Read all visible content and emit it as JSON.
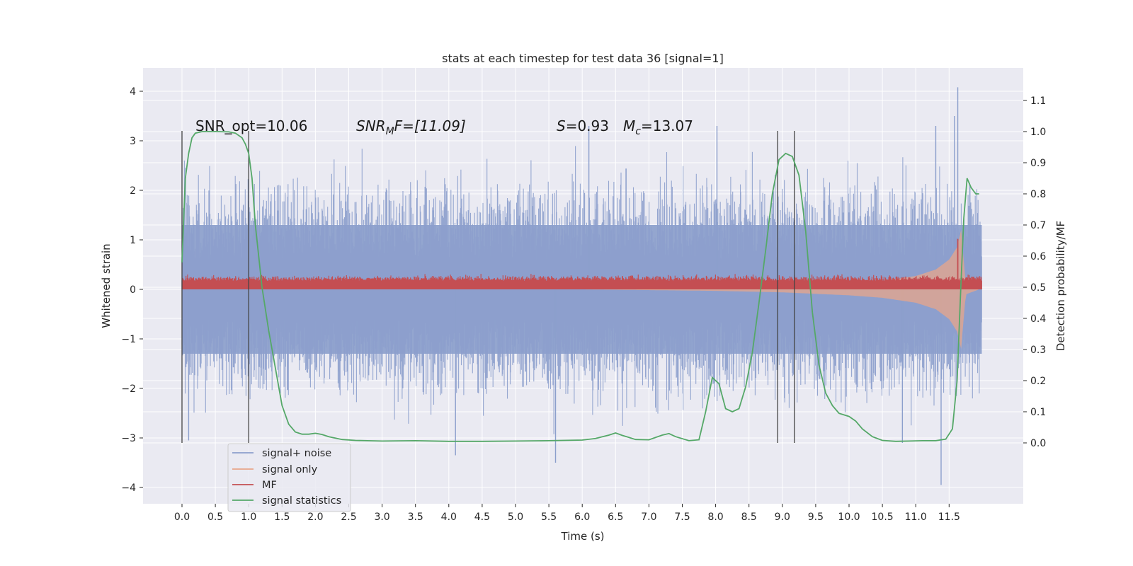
{
  "chart_data": {
    "type": "line",
    "title": "stats at each timestep for test data 36 [signal=1]",
    "xlabel": "Time (s)",
    "ylabel": "Whitened strain",
    "ylabel_right": "Detection probability/MF",
    "xlim": [
      -0.58,
      12.58
    ],
    "ylim": [
      -4.4,
      4.45
    ],
    "ylim_right": [
      -0.2,
      1.19
    ],
    "x_ticks": [
      0.0,
      0.5,
      1.0,
      1.5,
      2.0,
      2.5,
      3.0,
      3.5,
      4.0,
      4.5,
      5.0,
      5.5,
      6.0,
      6.5,
      7.0,
      7.5,
      8.0,
      8.5,
      9.0,
      9.5,
      10.0,
      10.5,
      11.0,
      11.5
    ],
    "x_tick_labels": [
      "0.0",
      "0.5",
      "1.0",
      "1.5",
      "2.0",
      "2.5",
      "3.0",
      "3.5",
      "4.0",
      "4.5",
      "5.0",
      "5.5",
      "6.0",
      "6.5",
      "7.0",
      "7.5",
      "8.0",
      "8.5",
      "9.0",
      "9.5",
      "10.0",
      "10.5",
      "11.0",
      "11.5"
    ],
    "y_ticks": [
      4,
      3,
      2,
      1,
      0,
      -1,
      -2,
      -3,
      -4
    ],
    "y_tick_labels": [
      "4",
      "3",
      "2",
      "1",
      "0",
      "−1",
      "−2",
      "−3",
      "−4"
    ],
    "y2_ticks": [
      1.1,
      1.0,
      0.9,
      0.8,
      0.7,
      0.6,
      0.5,
      0.4,
      0.3,
      0.2,
      0.1,
      0.0
    ],
    "y2_tick_labels": [
      "1.1",
      "1.0",
      "0.9",
      "0.8",
      "0.7",
      "0.6",
      "0.5",
      "0.4",
      "0.3",
      "0.2",
      "0.1",
      "0.0"
    ],
    "grid": true,
    "legend_position": "lower-left",
    "annotations": {
      "snr_opt": "SNR_opt=10.06",
      "snr_mf_sym": "SNR",
      "snr_mf_sub": "M",
      "snr_mf_rest": "F=[11.09]",
      "s_sym": "S",
      "s_rest": "=0.93",
      "mc_sym": "M",
      "mc_sub": "c",
      "mc_rest": "=13.07"
    },
    "vertical_markers": [
      {
        "x": 0.0,
        "y_range": [
          -3.1,
          3.2
        ]
      },
      {
        "x": 1.0,
        "y_range": [
          -3.1,
          3.2
        ]
      },
      {
        "x": 8.93,
        "y_range": [
          -3.1,
          3.2
        ]
      },
      {
        "x": 9.18,
        "y_range": [
          -3.1,
          3.2
        ]
      }
    ],
    "series": [
      {
        "name": "signal+ noise",
        "color": "#8c9fcc",
        "description_values": {
          "x_range": [
            0.0,
            11.99
          ],
          "core_band": [
            -1.3,
            1.3
          ],
          "spike_max": 4.08,
          "spike_min": -3.95
        }
      },
      {
        "name": "signal only",
        "color": "#e8a58a",
        "envelope": {
          "x": [
            0.0,
            6.0,
            8.0,
            9.0,
            10.0,
            10.5,
            11.0,
            11.3,
            11.5,
            11.62,
            11.68,
            11.75,
            11.95
          ],
          "amplitude": [
            0.0,
            0.0,
            0.03,
            0.06,
            0.12,
            0.17,
            0.27,
            0.4,
            0.6,
            0.85,
            1.2,
            0.1,
            0.0
          ]
        }
      },
      {
        "name": "MF",
        "color": "#c44e52",
        "base_level": 0.15,
        "peak": {
          "x": 11.63,
          "y": 1.02
        }
      },
      {
        "name": "signal statistics",
        "color": "#55a868",
        "axis": "right",
        "x": [
          0.0,
          0.05,
          0.1,
          0.15,
          0.2,
          0.3,
          0.5,
          0.7,
          0.8,
          0.9,
          0.95,
          1.0,
          1.05,
          1.1,
          1.2,
          1.3,
          1.4,
          1.5,
          1.6,
          1.7,
          1.8,
          1.9,
          2.0,
          2.1,
          2.2,
          2.4,
          2.6,
          3.0,
          3.5,
          4.0,
          4.5,
          5.0,
          5.5,
          6.0,
          6.2,
          6.4,
          6.5,
          6.6,
          6.8,
          7.0,
          7.2,
          7.3,
          7.4,
          7.6,
          7.75,
          7.85,
          7.95,
          8.05,
          8.15,
          8.25,
          8.35,
          8.45,
          8.55,
          8.65,
          8.75,
          8.85,
          8.95,
          9.05,
          9.15,
          9.25,
          9.35,
          9.45,
          9.55,
          9.65,
          9.75,
          9.85,
          10.0,
          10.1,
          10.2,
          10.35,
          10.5,
          10.7,
          10.9,
          11.1,
          11.3,
          11.45,
          11.55,
          11.62,
          11.67,
          11.72,
          11.77,
          11.83,
          11.9,
          11.95
        ],
        "values": [
          0.58,
          0.85,
          0.93,
          0.98,
          0.995,
          1.0,
          1.0,
          0.999,
          0.995,
          0.98,
          0.96,
          0.93,
          0.85,
          0.7,
          0.5,
          0.36,
          0.24,
          0.12,
          0.06,
          0.035,
          0.028,
          0.028,
          0.031,
          0.027,
          0.02,
          0.011,
          0.008,
          0.006,
          0.007,
          0.005,
          0.005,
          0.006,
          0.007,
          0.009,
          0.014,
          0.025,
          0.032,
          0.024,
          0.011,
          0.01,
          0.025,
          0.03,
          0.02,
          0.007,
          0.01,
          0.1,
          0.21,
          0.19,
          0.11,
          0.1,
          0.11,
          0.18,
          0.29,
          0.45,
          0.62,
          0.8,
          0.91,
          0.93,
          0.92,
          0.86,
          0.68,
          0.42,
          0.25,
          0.16,
          0.12,
          0.095,
          0.085,
          0.07,
          0.045,
          0.02,
          0.008,
          0.005,
          0.006,
          0.007,
          0.007,
          0.012,
          0.045,
          0.2,
          0.47,
          0.72,
          0.85,
          0.82,
          0.8,
          0.8
        ]
      }
    ]
  }
}
